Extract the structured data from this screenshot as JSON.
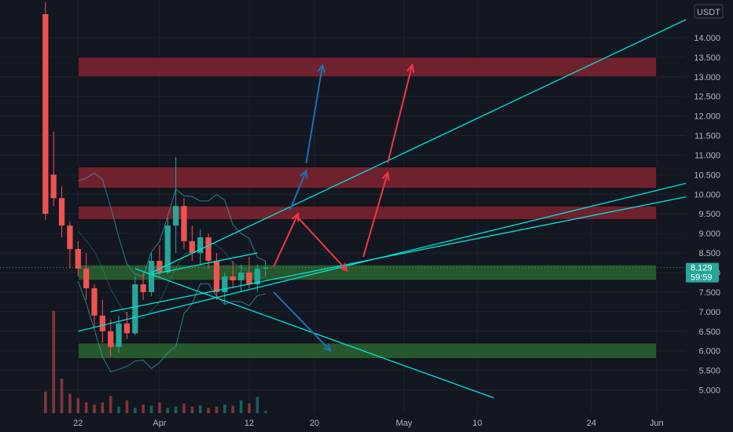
{
  "currency": "USDT",
  "price_badge": {
    "price": "8.129",
    "countdown": "59:59",
    "color": "#26a69a"
  },
  "colors": {
    "background": "#131722",
    "grid": "#1e222d",
    "up": "#26a69a",
    "down": "#ef5350",
    "trendline": "#00e5d8",
    "blue_arrow": "#1e6fb5",
    "red_arrow": "#f23645",
    "resistance_zone": "#7a2430",
    "support_zone": "#2a5e2e",
    "bollinger": "#3aa8b0",
    "axis_text": "#b2b5be"
  },
  "chart_data": {
    "type": "candlestick",
    "y_axis": {
      "ylim": [
        4.75,
        14.6
      ],
      "ticks": [
        "14.000",
        "13.500",
        "13.000",
        "12.500",
        "12.000",
        "11.500",
        "11.000",
        "10.500",
        "10.000",
        "9.500",
        "9.000",
        "8.500",
        "8.000",
        "7.500",
        "7.000",
        "6.500",
        "6.000",
        "5.500",
        "5.000"
      ]
    },
    "x_axis": {
      "range": [
        "2024-03-13",
        "2024-06-04"
      ],
      "ticks": [
        {
          "date": "2024-03-22",
          "label": "22"
        },
        {
          "date": "2024-04-01",
          "label": "Apr"
        },
        {
          "date": "2024-04-12",
          "label": "12"
        },
        {
          "date": "2024-04-20",
          "label": "20"
        },
        {
          "date": "2024-05-01",
          "label": "May"
        },
        {
          "date": "2024-05-10",
          "label": "10"
        },
        {
          "date": "2024-05-24",
          "label": "24"
        },
        {
          "date": "2024-06-01",
          "label": "Jun"
        }
      ]
    },
    "zones": [
      {
        "kind": "resistance",
        "from": "2024-03-22",
        "to": "2024-06-01",
        "low": 13.0,
        "high": 13.5
      },
      {
        "kind": "resistance",
        "from": "2024-03-22",
        "to": "2024-06-01",
        "low": 10.15,
        "high": 10.7
      },
      {
        "kind": "resistance",
        "from": "2024-03-22",
        "to": "2024-06-01",
        "low": 9.35,
        "high": 9.7
      },
      {
        "kind": "support",
        "from": "2024-03-22",
        "to": "2024-06-01",
        "low": 7.8,
        "high": 8.2
      },
      {
        "kind": "support",
        "from": "2024-03-22",
        "to": "2024-06-01",
        "low": 5.8,
        "high": 6.2
      }
    ],
    "trendlines": [
      {
        "x1": "2024-03-31",
        "y1": 8.0,
        "x2": "2024-06-05",
        "y2": 14.5
      },
      {
        "x1": "2024-03-22",
        "y1": 6.5,
        "x2": "2024-06-05",
        "y2": 10.3
      },
      {
        "x1": "2024-03-26",
        "y1": 7.0,
        "x2": "2024-06-05",
        "y2": 9.95
      },
      {
        "x1": "2024-03-29",
        "y1": 8.1,
        "x2": "2024-05-12",
        "y2": 4.8
      },
      {
        "x1": "2024-03-31",
        "y1": 7.95,
        "x2": "2024-04-13",
        "y2": 8.5
      }
    ],
    "arrows": [
      {
        "color": "blue",
        "x1": "2024-04-17",
        "y1": 9.6,
        "x2": "2024-04-19",
        "y2": 10.6
      },
      {
        "color": "blue",
        "x1": "2024-04-19",
        "y1": 10.8,
        "x2": "2024-04-21",
        "y2": 13.3
      },
      {
        "color": "blue",
        "x1": "2024-04-15",
        "y1": 7.5,
        "x2": "2024-04-22",
        "y2": 6.0
      },
      {
        "color": "red",
        "x1": "2024-04-15",
        "y1": 8.15,
        "x2": "2024-04-18",
        "y2": 9.5
      },
      {
        "color": "red",
        "x1": "2024-04-18",
        "y1": 9.4,
        "x2": "2024-04-24",
        "y2": 8.05
      },
      {
        "color": "red",
        "x1": "2024-04-26",
        "y1": 8.4,
        "x2": "2024-04-29",
        "y2": 10.55
      },
      {
        "color": "red",
        "x1": "2024-04-29",
        "y1": 10.8,
        "x2": "2024-05-02",
        "y2": 13.3
      }
    ],
    "candles": [
      {
        "date": "2024-03-18",
        "o": 14.6,
        "h": 14.9,
        "l": 9.35,
        "c": 9.5
      },
      {
        "date": "2024-03-19",
        "o": 10.5,
        "h": 11.6,
        "l": 9.7,
        "c": 9.9
      },
      {
        "date": "2024-03-20",
        "o": 9.9,
        "h": 10.2,
        "l": 8.9,
        "c": 9.2
      },
      {
        "date": "2024-03-21",
        "o": 9.2,
        "h": 9.3,
        "l": 8.1,
        "c": 8.6
      },
      {
        "date": "2024-03-22",
        "o": 8.6,
        "h": 8.8,
        "l": 7.9,
        "c": 8.1
      },
      {
        "date": "2024-03-23",
        "o": 8.1,
        "h": 8.5,
        "l": 7.3,
        "c": 7.6
      },
      {
        "date": "2024-03-24",
        "o": 7.6,
        "h": 7.7,
        "l": 6.6,
        "c": 6.9
      },
      {
        "date": "2024-03-25",
        "o": 6.9,
        "h": 7.3,
        "l": 6.2,
        "c": 6.5
      },
      {
        "date": "2024-03-26",
        "o": 6.5,
        "h": 6.8,
        "l": 5.85,
        "c": 6.1
      },
      {
        "date": "2024-03-27",
        "o": 6.1,
        "h": 6.9,
        "l": 5.95,
        "c": 6.7
      },
      {
        "date": "2024-03-28",
        "o": 6.7,
        "h": 7.0,
        "l": 6.3,
        "c": 6.45
      },
      {
        "date": "2024-03-29",
        "o": 6.45,
        "h": 7.9,
        "l": 6.4,
        "c": 7.7
      },
      {
        "date": "2024-03-30",
        "o": 7.7,
        "h": 8.0,
        "l": 7.3,
        "c": 7.5
      },
      {
        "date": "2024-03-31",
        "o": 7.5,
        "h": 8.5,
        "l": 7.4,
        "c": 8.3
      },
      {
        "date": "2024-04-01",
        "o": 8.3,
        "h": 8.7,
        "l": 7.9,
        "c": 8.0
      },
      {
        "date": "2024-04-02",
        "o": 8.0,
        "h": 9.4,
        "l": 7.95,
        "c": 9.2
      },
      {
        "date": "2024-04-03",
        "o": 9.2,
        "h": 10.95,
        "l": 8.5,
        "c": 9.7
      },
      {
        "date": "2024-04-04",
        "o": 9.7,
        "h": 9.9,
        "l": 8.6,
        "c": 8.8
      },
      {
        "date": "2024-04-05",
        "o": 8.8,
        "h": 9.2,
        "l": 8.3,
        "c": 8.5
      },
      {
        "date": "2024-04-06",
        "o": 8.5,
        "h": 9.1,
        "l": 8.2,
        "c": 8.9
      },
      {
        "date": "2024-04-07",
        "o": 8.9,
        "h": 9.0,
        "l": 8.1,
        "c": 8.3
      },
      {
        "date": "2024-04-08",
        "o": 8.3,
        "h": 8.5,
        "l": 7.3,
        "c": 7.5
      },
      {
        "date": "2024-04-09",
        "o": 7.5,
        "h": 8.0,
        "l": 7.2,
        "c": 7.9
      },
      {
        "date": "2024-04-10",
        "o": 7.9,
        "h": 8.3,
        "l": 7.6,
        "c": 7.8
      },
      {
        "date": "2024-04-11",
        "o": 7.8,
        "h": 8.2,
        "l": 7.5,
        "c": 8.0
      },
      {
        "date": "2024-04-12",
        "o": 8.0,
        "h": 8.4,
        "l": 7.6,
        "c": 7.7
      },
      {
        "date": "2024-04-13",
        "o": 7.7,
        "h": 8.2,
        "l": 7.5,
        "c": 8.1
      },
      {
        "date": "2024-04-14",
        "o": 8.1,
        "h": 8.3,
        "l": 7.9,
        "c": 8.129
      }
    ],
    "volume": [
      20,
      95,
      32,
      18,
      14,
      10,
      8,
      10,
      16,
      6,
      12,
      5,
      8,
      7,
      10,
      5,
      6,
      9,
      6,
      7,
      5,
      6,
      8,
      7,
      12,
      9,
      15,
      2
    ]
  }
}
